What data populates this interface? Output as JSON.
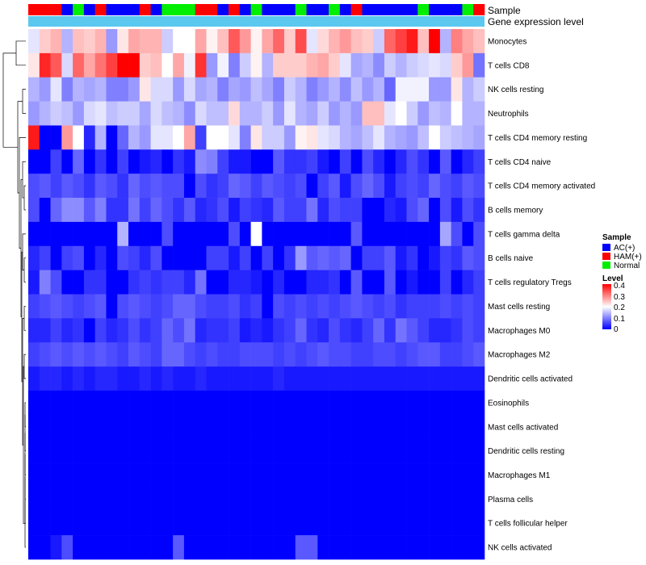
{
  "chart_data": {
    "type": "heatmap",
    "title": "",
    "rows": [
      "Monocytes",
      "T cells CD8",
      "NK cells resting",
      "Neutrophils",
      "T cells CD4 memory resting",
      "T cells CD4 naive",
      "T cells CD4 memory activated",
      "B cells memory",
      "T cells gamma delta",
      "B cells naive",
      "T cells regulatory  Tregs",
      "Mast cells resting",
      "Macrophages M0",
      "Macrophages M2",
      "Dendritic cells activated",
      "Eosinophils",
      "Mast cells activated",
      "Dendritic cells resting",
      "Macrophages M1",
      "Plasma cells",
      "T cells follicular helper",
      "NK cells activated"
    ],
    "column_annotations": {
      "Sample": [
        "HAM(+)",
        "HAM(+)",
        "HAM(+)",
        "AC(+)",
        "Normal",
        "AC(+)",
        "HAM(+)",
        "AC(+)",
        "AC(+)",
        "AC(+)",
        "HAM(+)",
        "AC(+)",
        "Normal",
        "Normal",
        "Normal",
        "HAM(+)",
        "HAM(+)",
        "AC(+)",
        "HAM(+)",
        "AC(+)",
        "Normal",
        "AC(+)",
        "AC(+)",
        "AC(+)",
        "Normal",
        "AC(+)",
        "AC(+)",
        "Normal",
        "AC(+)",
        "HAM(+)",
        "AC(+)",
        "AC(+)",
        "AC(+)",
        "AC(+)",
        "AC(+)",
        "Normal",
        "AC(+)",
        "AC(+)",
        "AC(+)",
        "Normal",
        "HAM(+)"
      ],
      "Gene expression level": "single continuous band (light blue)"
    },
    "annotation_labels": [
      "Sample",
      "Gene expression level"
    ],
    "values": [
      [
        0.18,
        0.24,
        0.26,
        0.14,
        0.25,
        0.24,
        0.26,
        0.12,
        0.22,
        0.27,
        0.26,
        0.26,
        0.16,
        0.2,
        0.2,
        0.27,
        0.21,
        0.25,
        0.33,
        0.28,
        0.21,
        0.27,
        0.32,
        0.24,
        0.34,
        0.18,
        0.23,
        0.26,
        0.28,
        0.25,
        0.24,
        0.16,
        0.32,
        0.35,
        0.38,
        0.25,
        0.4,
        0.14,
        0.3,
        0.27,
        0.25
      ],
      [
        0.22,
        0.37,
        0.33,
        0.17,
        0.32,
        0.27,
        0.31,
        0.35,
        0.4,
        0.4,
        0.24,
        0.25,
        0.2,
        0.27,
        0.19,
        0.36,
        0.12,
        0.19,
        0.1,
        0.16,
        0.21,
        0.14,
        0.24,
        0.24,
        0.24,
        0.26,
        0.27,
        0.24,
        0.18,
        0.13,
        0.14,
        0.11,
        0.16,
        0.14,
        0.16,
        0.17,
        0.18,
        0.17,
        0.24,
        0.28,
        0.09
      ],
      [
        0.14,
        0.12,
        0.18,
        0.1,
        0.14,
        0.13,
        0.14,
        0.1,
        0.1,
        0.12,
        0.22,
        0.17,
        0.17,
        0.12,
        0.17,
        0.13,
        0.14,
        0.1,
        0.13,
        0.12,
        0.15,
        0.13,
        0.1,
        0.16,
        0.14,
        0.1,
        0.12,
        0.14,
        0.11,
        0.15,
        0.12,
        0.14,
        0.08,
        0.19,
        0.19,
        0.19,
        0.12,
        0.12,
        0.22,
        0.14,
        0.16
      ],
      [
        0.12,
        0.14,
        0.16,
        0.15,
        0.12,
        0.17,
        0.18,
        0.15,
        0.16,
        0.16,
        0.13,
        0.17,
        0.15,
        0.14,
        0.11,
        0.17,
        0.15,
        0.15,
        0.23,
        0.14,
        0.14,
        0.16,
        0.12,
        0.18,
        0.14,
        0.13,
        0.16,
        0.12,
        0.14,
        0.12,
        0.25,
        0.25,
        0.18,
        0.2,
        0.16,
        0.12,
        0.15,
        0.14,
        0.2,
        0.14,
        0.14
      ],
      [
        0.38,
        0.0,
        0.0,
        0.28,
        0.2,
        0.03,
        0.14,
        0.0,
        0.08,
        0.14,
        0.12,
        0.18,
        0.18,
        0.2,
        0.27,
        0.05,
        0.2,
        0.2,
        0.18,
        0.1,
        0.22,
        0.16,
        0.16,
        0.12,
        0.21,
        0.22,
        0.18,
        0.17,
        0.14,
        0.13,
        0.15,
        0.18,
        0.14,
        0.13,
        0.12,
        0.15,
        0.2,
        0.16,
        0.15,
        0.14,
        0.13
      ],
      [
        0.0,
        0.0,
        0.05,
        0.0,
        0.08,
        0.0,
        0.04,
        0.0,
        0.05,
        0.0,
        0.02,
        0.03,
        0.0,
        0.04,
        0.02,
        0.11,
        0.1,
        0.05,
        0.02,
        0.02,
        0.0,
        0.0,
        0.07,
        0.04,
        0.04,
        0.05,
        0.02,
        0.0,
        0.05,
        0.0,
        0.06,
        0.03,
        0.0,
        0.03,
        0.06,
        0.04,
        0.0,
        0.07,
        0.0,
        0.03,
        0.05
      ],
      [
        0.06,
        0.07,
        0.05,
        0.07,
        0.06,
        0.04,
        0.07,
        0.06,
        0.04,
        0.08,
        0.06,
        0.07,
        0.06,
        0.06,
        0.0,
        0.06,
        0.04,
        0.05,
        0.08,
        0.07,
        0.05,
        0.07,
        0.06,
        0.05,
        0.06,
        0.0,
        0.05,
        0.07,
        0.02,
        0.06,
        0.08,
        0.06,
        0.02,
        0.05,
        0.06,
        0.05,
        0.08,
        0.06,
        0.05,
        0.07,
        0.06
      ],
      [
        0.06,
        0.0,
        0.08,
        0.11,
        0.11,
        0.07,
        0.1,
        0.04,
        0.04,
        0.09,
        0.05,
        0.08,
        0.06,
        0.04,
        0.07,
        0.03,
        0.04,
        0.06,
        0.02,
        0.05,
        0.04,
        0.03,
        0.07,
        0.05,
        0.05,
        0.09,
        0.03,
        0.06,
        0.05,
        0.05,
        0.0,
        0.0,
        0.03,
        0.02,
        0.06,
        0.08,
        0.0,
        0.06,
        0.02,
        0.06,
        0.04
      ],
      [
        0.0,
        0.0,
        0.0,
        0.0,
        0.0,
        0.0,
        0.0,
        0.0,
        0.14,
        0.0,
        0.0,
        0.0,
        0.06,
        0.0,
        0.0,
        0.0,
        0.0,
        0.0,
        0.06,
        0.0,
        0.2,
        0.0,
        0.0,
        0.0,
        0.0,
        0.0,
        0.0,
        0.0,
        0.0,
        0.07,
        0.0,
        0.0,
        0.0,
        0.0,
        0.0,
        0.0,
        0.0,
        0.13,
        0.06,
        0.0,
        0.06
      ],
      [
        0.03,
        0.05,
        0.0,
        0.05,
        0.06,
        0.0,
        0.03,
        0.0,
        0.06,
        0.05,
        0.03,
        0.06,
        0.0,
        0.0,
        0.0,
        0.0,
        0.05,
        0.05,
        0.02,
        0.05,
        0.0,
        0.05,
        0.0,
        0.04,
        0.12,
        0.07,
        0.08,
        0.07,
        0.08,
        0.0,
        0.05,
        0.05,
        0.07,
        0.02,
        0.04,
        0.0,
        0.02,
        0.05,
        0.04,
        0.07,
        0.06
      ],
      [
        0.02,
        0.1,
        0.06,
        0.0,
        0.0,
        0.04,
        0.04,
        0.0,
        0.0,
        0.04,
        0.05,
        0.04,
        0.05,
        0.05,
        0.03,
        0.09,
        0.0,
        0.0,
        0.03,
        0.03,
        0.02,
        0.0,
        0.03,
        0.0,
        0.0,
        0.03,
        0.03,
        0.04,
        0.0,
        0.07,
        0.0,
        0.0,
        0.07,
        0.0,
        0.02,
        0.0,
        0.0,
        0.05,
        0.0,
        0.03,
        0.05
      ],
      [
        0.05,
        0.06,
        0.07,
        0.06,
        0.05,
        0.06,
        0.07,
        0.0,
        0.06,
        0.07,
        0.06,
        0.05,
        0.06,
        0.08,
        0.08,
        0.06,
        0.05,
        0.05,
        0.06,
        0.04,
        0.05,
        0.0,
        0.06,
        0.05,
        0.06,
        0.05,
        0.06,
        0.05,
        0.06,
        0.07,
        0.06,
        0.05,
        0.06,
        0.04,
        0.05,
        0.05,
        0.05,
        0.06,
        0.05,
        0.06,
        0.05
      ],
      [
        0.03,
        0.03,
        0.05,
        0.03,
        0.04,
        0.0,
        0.05,
        0.03,
        0.04,
        0.06,
        0.04,
        0.05,
        0.08,
        0.06,
        0.09,
        0.03,
        0.04,
        0.04,
        0.05,
        0.02,
        0.03,
        0.02,
        0.04,
        0.05,
        0.08,
        0.04,
        0.03,
        0.06,
        0.04,
        0.03,
        0.05,
        0.08,
        0.04,
        0.09,
        0.07,
        0.05,
        0.03,
        0.03,
        0.04,
        0.06,
        0.05
      ],
      [
        0.05,
        0.06,
        0.07,
        0.06,
        0.07,
        0.06,
        0.07,
        0.06,
        0.05,
        0.07,
        0.06,
        0.05,
        0.08,
        0.08,
        0.06,
        0.05,
        0.06,
        0.05,
        0.05,
        0.06,
        0.06,
        0.06,
        0.05,
        0.06,
        0.05,
        0.06,
        0.07,
        0.06,
        0.06,
        0.05,
        0.05,
        0.06,
        0.06,
        0.05,
        0.06,
        0.07,
        0.07,
        0.05,
        0.05,
        0.06,
        0.07
      ],
      [
        0.02,
        0.03,
        0.03,
        0.02,
        0.03,
        0.02,
        0.03,
        0.03,
        0.02,
        0.02,
        0.03,
        0.02,
        0.03,
        0.02,
        0.02,
        0.03,
        0.02,
        0.02,
        0.02,
        0.02,
        0.02,
        0.02,
        0.03,
        0.02,
        0.02,
        0.02,
        0.02,
        0.02,
        0.02,
        0.02,
        0.02,
        0.02,
        0.02,
        0.02,
        0.02,
        0.02,
        0.02,
        0.02,
        0.02,
        0.02,
        0.02
      ],
      [
        0,
        0,
        0,
        0,
        0,
        0,
        0,
        0,
        0,
        0,
        0,
        0,
        0,
        0,
        0,
        0,
        0,
        0,
        0,
        0,
        0,
        0,
        0,
        0,
        0,
        0,
        0,
        0,
        0,
        0,
        0,
        0,
        0,
        0,
        0,
        0,
        0,
        0,
        0,
        0,
        0
      ],
      [
        0,
        0,
        0,
        0,
        0,
        0,
        0,
        0,
        0,
        0,
        0,
        0,
        0,
        0,
        0,
        0,
        0,
        0,
        0,
        0,
        0,
        0,
        0,
        0,
        0,
        0,
        0,
        0,
        0,
        0,
        0,
        0,
        0,
        0,
        0,
        0,
        0,
        0,
        0,
        0,
        0
      ],
      [
        0,
        0,
        0,
        0,
        0,
        0,
        0,
        0,
        0,
        0,
        0,
        0,
        0,
        0,
        0,
        0,
        0,
        0,
        0,
        0,
        0,
        0,
        0,
        0,
        0,
        0,
        0,
        0,
        0,
        0,
        0,
        0,
        0,
        0,
        0,
        0,
        0,
        0,
        0,
        0,
        0
      ],
      [
        0,
        0,
        0,
        0,
        0,
        0,
        0,
        0,
        0,
        0,
        0,
        0,
        0,
        0,
        0,
        0,
        0,
        0,
        0,
        0,
        0,
        0,
        0,
        0,
        0,
        0,
        0,
        0,
        0,
        0,
        0,
        0,
        0,
        0,
        0,
        0,
        0,
        0,
        0,
        0,
        0
      ],
      [
        0,
        0,
        0,
        0,
        0,
        0,
        0,
        0,
        0,
        0,
        0,
        0,
        0,
        0,
        0,
        0,
        0,
        0,
        0,
        0,
        0,
        0,
        0,
        0,
        0,
        0,
        0,
        0,
        0,
        0,
        0,
        0,
        0,
        0,
        0,
        0,
        0,
        0,
        0,
        0,
        0
      ],
      [
        0,
        0,
        0,
        0,
        0,
        0,
        0,
        0,
        0,
        0,
        0,
        0,
        0,
        0,
        0,
        0,
        0,
        0,
        0,
        0,
        0,
        0,
        0,
        0,
        0,
        0,
        0,
        0,
        0,
        0,
        0,
        0,
        0,
        0,
        0,
        0,
        0,
        0,
        0,
        0,
        0
      ],
      [
        0.0,
        0.0,
        0.02,
        0.06,
        0.0,
        0.0,
        0.0,
        0.0,
        0.0,
        0.0,
        0.0,
        0.0,
        0.0,
        0.07,
        0.0,
        0.0,
        0.0,
        0.0,
        0.0,
        0.0,
        0.0,
        0.0,
        0.0,
        0.0,
        0.07,
        0.07,
        0.0,
        0.0,
        0.0,
        0.0,
        0.0,
        0.0,
        0.0,
        0.0,
        0.0,
        0.0,
        0.0,
        0.0,
        0.0,
        0.0,
        0.0
      ]
    ],
    "color_scale": {
      "name": "Level",
      "min": 0,
      "max": 0.4,
      "colors": [
        "#0000ff",
        "#ffffff",
        "#ff0000"
      ],
      "ticks": [
        "0.4",
        "0.3",
        "0.2",
        "0.1",
        "0"
      ]
    },
    "legend": {
      "sample_title": "Sample",
      "sample_entries": [
        {
          "label": "AC(+)",
          "color": "#0000ff"
        },
        {
          "label": "HAM(+)",
          "color": "#ff0000"
        },
        {
          "label": "Normal",
          "color": "#00ee00"
        }
      ],
      "position": "right"
    },
    "gene_expression_color": "#5bc8ef",
    "dendrogram": "rows"
  }
}
